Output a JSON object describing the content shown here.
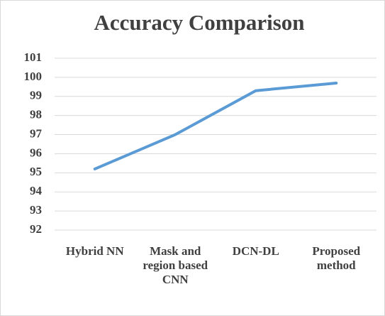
{
  "chart_data": {
    "type": "line",
    "title": "Accuracy Comparison",
    "categories": [
      "Hybrid NN",
      "Mask and region based CNN",
      "DCN-DL",
      "Proposed method"
    ],
    "values": [
      95.2,
      97.0,
      99.3,
      99.7
    ],
    "color": "#5b9bd5",
    "ylim": [
      92,
      101
    ],
    "yticks": [
      92,
      93,
      94,
      95,
      96,
      97,
      98,
      99,
      100,
      101
    ],
    "grid": true
  }
}
